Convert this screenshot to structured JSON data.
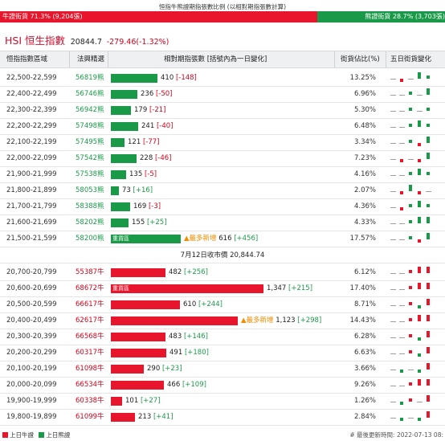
{
  "header": {
    "title": "恒指牛熊證期指張數比例 (以相對期指張數計算)",
    "bull_label": "牛證街貨 71.3% (9,204張)",
    "bear_label": "熊證街貨 28.7% (3,703張)",
    "bull_ratio": 71.3
  },
  "index": {
    "name": "HSI 恒生指數",
    "price": "20844.7",
    "change": "-279.46(-1.32%)"
  },
  "columns": {
    "range": "恒指指數區域",
    "issuer": "法興精選",
    "contracts": "相對期指張數 [括號內為一日變化]",
    "pct": "街貨佔比(%)",
    "five_day": "五日街貨變化"
  },
  "labels": {
    "heavy": "重貨區",
    "new_high": "▲最多新增"
  },
  "mid": "7月12日收市價 20,844.74",
  "bear_rows": [
    {
      "range": "22,500-22,599",
      "code": "56819熊",
      "value": 410,
      "change": "[-148]",
      "pct": "13.25%",
      "spark": [
        0,
        1,
        0,
        2,
        1
      ]
    },
    {
      "range": "22,400-22,499",
      "code": "56746熊",
      "value": 236,
      "change": "[-50]",
      "pct": "6.96%",
      "spark": [
        0,
        0,
        1,
        0,
        2
      ]
    },
    {
      "range": "22,300-22,399",
      "code": "56942熊",
      "value": 179,
      "change": "[-21]",
      "pct": "5.30%",
      "spark": [
        0,
        0,
        1,
        0,
        1
      ]
    },
    {
      "range": "22,200-22,299",
      "code": "57498熊",
      "value": 241,
      "change": "[-40]",
      "pct": "6.48%",
      "spark": [
        0,
        0,
        1,
        2,
        1
      ]
    },
    {
      "range": "22,100-22,199",
      "code": "57495熊",
      "value": 121,
      "change": "[-77]",
      "pct": "3.34%",
      "spark": [
        0,
        0,
        1,
        1,
        2
      ]
    },
    {
      "range": "22,000-22,099",
      "code": "57542熊",
      "value": 228,
      "change": "[-46]",
      "pct": "7.23%",
      "spark": [
        0,
        1,
        0,
        1,
        2
      ]
    },
    {
      "range": "21,900-21,999",
      "code": "57538熊",
      "value": 135,
      "change": "[-5]",
      "pct": "4.16%",
      "spark": [
        0,
        0,
        1,
        2,
        1
      ]
    },
    {
      "range": "21,800-21,899",
      "code": "58053熊",
      "value": 73,
      "change": "[+16]",
      "pct": "2.07%",
      "spark": [
        0,
        1,
        2,
        1,
        0
      ]
    },
    {
      "range": "21,700-21,799",
      "code": "58388熊",
      "value": 169,
      "change": "[-3]",
      "pct": "4.36%",
      "spark": [
        0,
        1,
        1,
        2,
        1
      ]
    },
    {
      "range": "21,600-21,699",
      "code": "58202熊",
      "value": 155,
      "change": "[+25]",
      "pct": "4.33%",
      "spark": [
        0,
        0,
        1,
        2,
        2
      ]
    },
    {
      "range": "21,500-21,599",
      "code": "58200熊",
      "value": 616,
      "change": "[+456]",
      "pct": "17.57%",
      "spark": [
        0,
        0,
        1,
        1,
        2
      ],
      "heavy": true,
      "new_high": true
    }
  ],
  "bull_rows": [
    {
      "range": "20,700-20,799",
      "code": "55387牛",
      "value": 482,
      "change": "[+256]",
      "pct": "6.12%",
      "spark": [
        0,
        0,
        1,
        2,
        2
      ]
    },
    {
      "range": "20,600-20,699",
      "code": "68672牛",
      "value": 1347,
      "change": "[+215]",
      "pct": "17.40%",
      "spark": [
        0,
        0,
        1,
        2,
        2
      ],
      "heavy": true
    },
    {
      "range": "20,500-20,599",
      "code": "66617牛",
      "value": 610,
      "change": "[+244]",
      "pct": "8.71%",
      "spark": [
        0,
        0,
        1,
        1,
        2
      ]
    },
    {
      "range": "20,400-20,499",
      "code": "62617牛",
      "value": 1123,
      "change": "[+298]",
      "pct": "14.43%",
      "spark": [
        0,
        0,
        1,
        2,
        2
      ],
      "new_high": true
    },
    {
      "range": "20,300-20,399",
      "code": "66568牛",
      "value": 483,
      "change": "[+146]",
      "pct": "6.28%",
      "spark": [
        0,
        0,
        1,
        1,
        2
      ]
    },
    {
      "range": "20,200-20,299",
      "code": "60317牛",
      "value": 491,
      "change": "[+180]",
      "pct": "6.63%",
      "spark": [
        0,
        0,
        1,
        1,
        2
      ]
    },
    {
      "range": "20,100-20,199",
      "code": "61098牛",
      "value": 290,
      "change": "[+23]",
      "pct": "3.66%",
      "spark": [
        0,
        1,
        0,
        1,
        2
      ]
    },
    {
      "range": "20,000-20,099",
      "code": "66534牛",
      "value": 466,
      "change": "[+109]",
      "pct": "9.26%",
      "spark": [
        0,
        0,
        1,
        2,
        2
      ]
    },
    {
      "range": "19,900-19,999",
      "code": "60338牛",
      "value": 101,
      "change": "[+27]",
      "pct": "1.26%",
      "spark": [
        0,
        1,
        1,
        0,
        2
      ]
    },
    {
      "range": "19,800-19,899",
      "code": "61099牛",
      "value": 213,
      "change": "[+41]",
      "pct": "2.84%",
      "spark": [
        0,
        1,
        0,
        1,
        2
      ]
    }
  ],
  "footer": {
    "legend_bull": "上日牛證",
    "legend_bear": "上日熊證",
    "updated": "# 最後更新時間: 2022-07-13 08:"
  },
  "colors": {
    "bull": "#e8162c",
    "bear": "#1a9a48",
    "accent": "#c8102e"
  }
}
